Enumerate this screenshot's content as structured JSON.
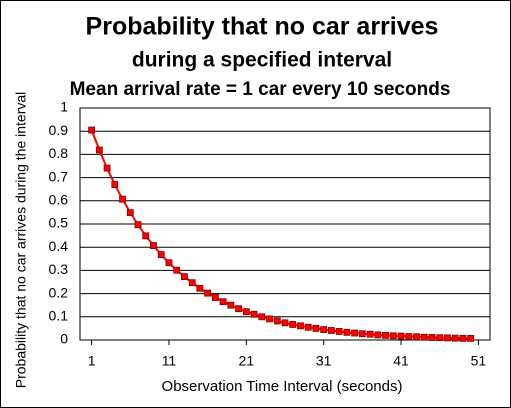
{
  "chart_data": {
    "type": "line",
    "title": "Probability that no car arrives",
    "subtitle": "during a specified interval",
    "annotation": "Mean arrival rate = 1 car every 10 seconds",
    "x_label": "Observation Time Interval (seconds)",
    "y_label": "Probability that no car arrives during the interval",
    "x": [
      1,
      2,
      3,
      4,
      5,
      6,
      7,
      8,
      9,
      10,
      11,
      12,
      13,
      14,
      15,
      16,
      17,
      18,
      19,
      20,
      21,
      22,
      23,
      24,
      25,
      26,
      27,
      28,
      29,
      30,
      31,
      32,
      33,
      34,
      35,
      36,
      37,
      38,
      39,
      40,
      41,
      42,
      43,
      44,
      45,
      46,
      47,
      48,
      49,
      50
    ],
    "series": [
      {
        "color": "#ff0000",
        "values": [
          0.905,
          0.819,
          0.741,
          0.67,
          0.607,
          0.549,
          0.497,
          0.449,
          0.407,
          0.368,
          0.333,
          0.301,
          0.273,
          0.247,
          0.223,
          0.202,
          0.183,
          0.165,
          0.15,
          0.135,
          0.122,
          0.111,
          0.1,
          0.091,
          0.082,
          0.074,
          0.067,
          0.061,
          0.055,
          0.05,
          0.045,
          0.041,
          0.037,
          0.033,
          0.03,
          0.027,
          0.025,
          0.022,
          0.02,
          0.018,
          0.017,
          0.015,
          0.014,
          0.012,
          0.011,
          0.01,
          0.009,
          0.008,
          0.007,
          0.007
        ]
      }
    ],
    "xlim": [
      -0.5,
      52.5
    ],
    "xticks": [
      1,
      11,
      21,
      31,
      41,
      51
    ],
    "ylim": [
      0,
      1
    ],
    "yticks": [
      0,
      0.1,
      0.2,
      0.3,
      0.4,
      0.5,
      0.6,
      0.7,
      0.8,
      0.9,
      1
    ],
    "grid": true
  }
}
